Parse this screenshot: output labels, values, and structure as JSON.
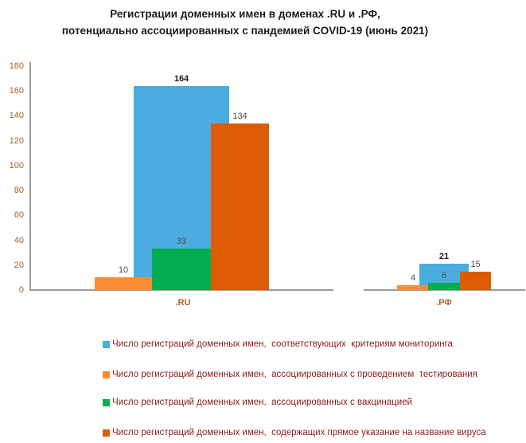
{
  "title": {
    "line1": "Регистрации доменных имен в доменах .RU и .РФ,",
    "line2": "потенциально ассоциированных с пандемией COVID-19 (июнь 2021)"
  },
  "colors": {
    "monitoring": "#4aacdf",
    "testing": "#fb8c35",
    "vaccination": "#04ad4f",
    "virus_name": "#dd5c03",
    "axis": "#9b9b9b",
    "tick_text": "#a9622d",
    "legend_text": "#8b1c1c"
  },
  "chart_data": {
    "type": "bar",
    "title": "Регистрации доменных имен в доменах .RU и .РФ, потенциально ассоциированных с пандемией COVID-19 (июнь 2021)",
    "categories": [
      ".RU",
      ".РФ"
    ],
    "y_ticks": [
      0,
      20,
      40,
      60,
      80,
      100,
      120,
      140,
      160,
      180
    ],
    "ylim": [
      0,
      180
    ],
    "grid": false,
    "legend_position": "bottom",
    "series": [
      {
        "id": "monitoring",
        "name": "Число регистраций доменных имен,  соответствующих  критериям мониторинга",
        "values": [
          164,
          21
        ],
        "emphasis": true
      },
      {
        "id": "testing",
        "name": "Число регистраций доменных имен,  ассоциированных с проведением  тестирования",
        "values": [
          10,
          4
        ],
        "emphasis": false
      },
      {
        "id": "vaccination",
        "name": "Число регистраций доменных имен,  ассоциированных с вакцинацией",
        "values": [
          33,
          6
        ],
        "emphasis": false
      },
      {
        "id": "virus_name",
        "name": "Число регистраций доменных имен,  содержащих прямое указание на название вируса",
        "values": [
          134,
          15
        ],
        "emphasis": false
      }
    ]
  }
}
